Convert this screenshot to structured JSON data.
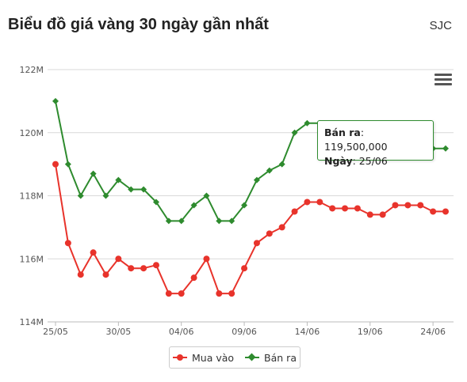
{
  "header": {
    "title": "Biểu đồ giá vàng 30 ngày gần nhất",
    "source": "SJC"
  },
  "tooltip": {
    "sell_label": "Bán ra",
    "sell_value": "119,500,000",
    "date_label": "Ngày",
    "date_value": "25/06"
  },
  "legend": {
    "buy": "Mua vào",
    "sell": "Bán ra"
  },
  "colors": {
    "buy": "#e8332b",
    "sell": "#2e8b2e",
    "grid": "#d9d9d9"
  },
  "chart_data": {
    "type": "line",
    "x": [
      "25/05",
      "26/05",
      "27/05",
      "28/05",
      "29/05",
      "30/05",
      "31/05",
      "01/06",
      "02/06",
      "03/06",
      "04/06",
      "05/06",
      "06/06",
      "07/06",
      "08/06",
      "09/06",
      "10/06",
      "11/06",
      "12/06",
      "13/06",
      "14/06",
      "15/06",
      "16/06",
      "17/06",
      "18/06",
      "19/06",
      "20/06",
      "21/06",
      "22/06",
      "23/06",
      "24/06",
      "25/06"
    ],
    "x_tick_labels": [
      "25/05",
      "30/05",
      "04/06",
      "09/06",
      "14/06",
      "19/06",
      "24/06"
    ],
    "y_ticks": [
      "114M",
      "116M",
      "118M",
      "120M",
      "122M"
    ],
    "ylim": [
      114,
      122
    ],
    "y_unit": "M",
    "grid": true,
    "legend_position": "bottom",
    "series": [
      {
        "name": "Mua vào",
        "marker": "circle",
        "values": [
          119.0,
          116.5,
          115.5,
          116.2,
          115.5,
          116.0,
          115.7,
          115.7,
          115.8,
          114.9,
          114.9,
          115.4,
          116.0,
          114.9,
          114.9,
          115.7,
          116.5,
          116.8,
          117.0,
          117.5,
          117.8,
          117.8,
          117.6,
          117.6,
          117.6,
          117.4,
          117.4,
          117.7,
          117.7,
          117.7,
          117.5,
          117.5
        ]
      },
      {
        "name": "Bán ra",
        "marker": "diamond",
        "values": [
          121.0,
          119.0,
          118.0,
          118.7,
          118.0,
          118.5,
          118.2,
          118.2,
          117.8,
          117.2,
          117.2,
          117.7,
          118.0,
          117.2,
          117.2,
          117.7,
          118.5,
          118.8,
          119.0,
          120.0,
          120.3,
          120.3,
          120.1,
          120.1,
          120.1,
          119.9,
          119.9,
          119.7,
          119.7,
          119.7,
          119.5,
          119.5
        ]
      }
    ]
  }
}
